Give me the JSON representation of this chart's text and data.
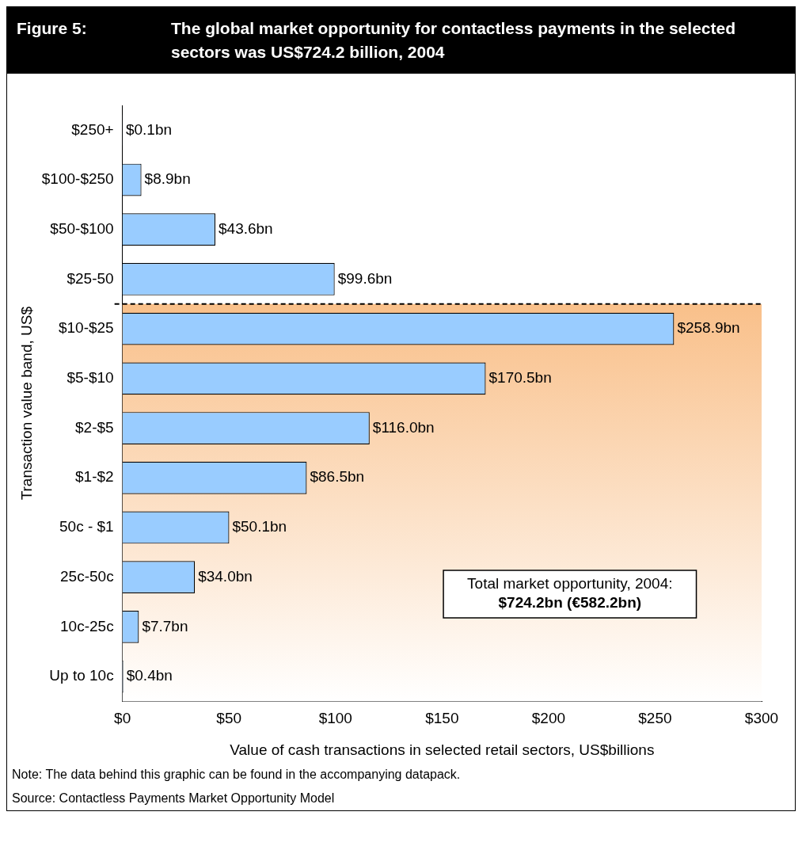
{
  "chart_data": {
    "type": "bar",
    "orientation": "horizontal",
    "title": "Figure 5:",
    "subtitle": "The global market opportunity for contactless payments in the selected sectors was US$724.2 billion, 2004",
    "xlabel": "Value of cash transactions in selected retail sectors, US$billions",
    "ylabel": "Transaction value band, US$",
    "categories": [
      "$250+",
      "$100-$250",
      "$50-$100",
      "$25-50",
      "$10-$25",
      "$5-$10",
      "$2-$5",
      "$1-$2",
      "50c - $1",
      "25c-50c",
      "10c-25c",
      "Up to 10c"
    ],
    "values": [
      0.1,
      8.9,
      43.6,
      99.6,
      258.9,
      170.5,
      116.0,
      86.5,
      50.1,
      34.0,
      7.7,
      0.4
    ],
    "value_labels": [
      "$0.1bn",
      "$8.9bn",
      "$43.6bn",
      "$99.6bn",
      "$258.9bn",
      "$170.5bn",
      "$116.0bn",
      "$86.5bn",
      "$50.1bn",
      "$34.0bn",
      "$7.7bn",
      "$0.4bn"
    ],
    "color": "#99ccff",
    "xlim": [
      0,
      300
    ],
    "xticks": [
      {
        "value": 0,
        "label": "$0"
      },
      {
        "value": 50,
        "label": "$50"
      },
      {
        "value": 100,
        "label": "$100"
      },
      {
        "value": 150,
        "label": "$150"
      },
      {
        "value": 200,
        "label": "$200"
      },
      {
        "value": 250,
        "label": "$250"
      },
      {
        "value": 300,
        "label": "$300"
      }
    ],
    "grid": false,
    "legend": false,
    "bands": [
      {
        "axis": "y",
        "from": "$10-$25",
        "to": "Up to 10c",
        "color": "#f9c08a"
      }
    ],
    "annotations": [
      "Total market opportunity, 2004:",
      "$724.2bn (€582.2bn)",
      "Note: The data behind this graphic can be found in the accompanying datapack.",
      "Source: Contactless Payments Market Opportunity Model"
    ]
  }
}
